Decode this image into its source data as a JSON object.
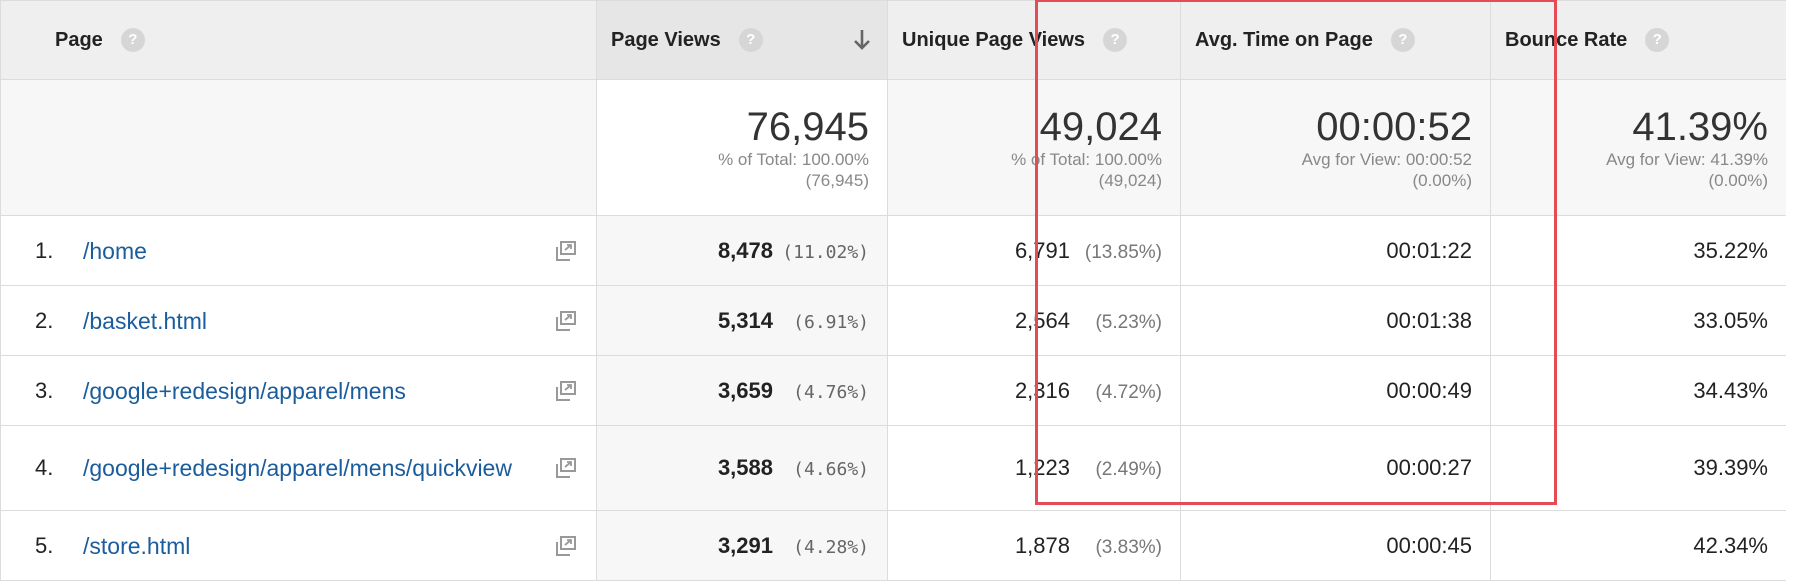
{
  "columns": {
    "page": "Page",
    "page_views": "Page Views",
    "unique_page_views": "Unique Page Views",
    "avg_time": "Avg. Time on Page",
    "bounce_rate": "Bounce Rate"
  },
  "help_glyph": "?",
  "totals": {
    "page_views": {
      "value": "76,945",
      "line1": "% of Total: 100.00%",
      "line2": "(76,945)"
    },
    "unique_page_views": {
      "value": "49,024",
      "line1": "% of Total: 100.00%",
      "line2": "(49,024)"
    },
    "avg_time": {
      "value": "00:00:52",
      "line1": "Avg for View: 00:00:52",
      "line2": "(0.00%)"
    },
    "bounce_rate": {
      "value": "41.39%",
      "line1": "Avg for View: 41.39%",
      "line2": "(0.00%)"
    }
  },
  "rows": [
    {
      "index": "1.",
      "page": "/home",
      "page_views": "8,478",
      "page_views_pct": "(11.02%)",
      "unique": "6,791",
      "unique_pct": "(13.85%)",
      "avg_time": "00:01:22",
      "bounce": "35.22%"
    },
    {
      "index": "2.",
      "page": "/basket.html",
      "page_views": "5,314",
      "page_views_pct": "(6.91%)",
      "unique": "2,564",
      "unique_pct": "(5.23%)",
      "avg_time": "00:01:38",
      "bounce": "33.05%"
    },
    {
      "index": "3.",
      "page": "/google+redesign/apparel/mens",
      "page_views": "3,659",
      "page_views_pct": "(4.76%)",
      "unique": "2,316",
      "unique_pct": "(4.72%)",
      "avg_time": "00:00:49",
      "bounce": "34.43%"
    },
    {
      "index": "4.",
      "page": "/google+redesign/apparel/mens/quickview",
      "page_views": "3,588",
      "page_views_pct": "(4.66%)",
      "unique": "1,223",
      "unique_pct": "(2.49%)",
      "avg_time": "00:00:27",
      "bounce": "39.39%"
    },
    {
      "index": "5.",
      "page": "/store.html",
      "page_views": "3,291",
      "page_views_pct": "(4.28%)",
      "unique": "1,878",
      "unique_pct": "(3.83%)",
      "avg_time": "00:00:45",
      "bounce": "42.34%"
    }
  ],
  "colors": {
    "link": "#1a5c9c",
    "highlight": "#e34b55",
    "header_bg": "#efefef"
  }
}
